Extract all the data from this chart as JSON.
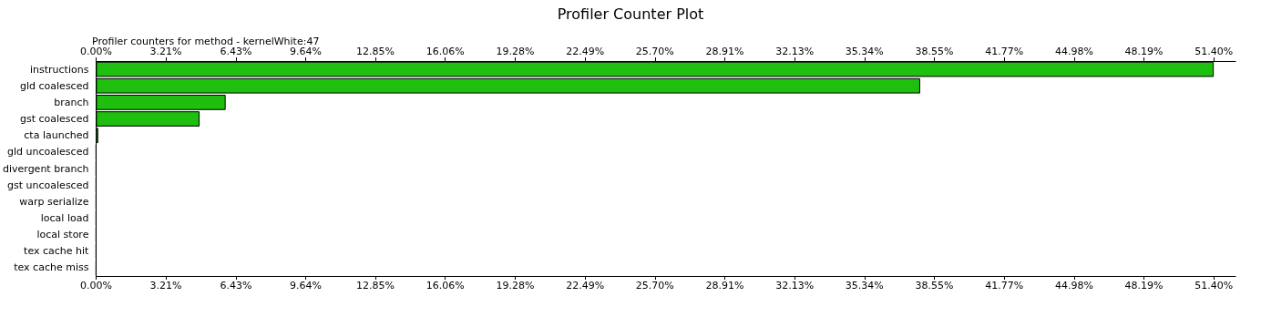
{
  "chart_data": {
    "type": "bar",
    "orientation": "horizontal",
    "title": "Profiler Counter Plot",
    "subtitle": "Profiler counters for method - kernelWhite:47",
    "categories": [
      "instructions",
      "gld coalesced",
      "branch",
      "gst coalesced",
      "cta launched",
      "gld uncoalesced",
      "divergent branch",
      "gst uncoalesced",
      "warp serialize",
      "local load",
      "local store",
      "tex cache hit",
      "tex cache miss"
    ],
    "values": [
      51.4,
      37.9,
      5.96,
      4.76,
      0.1,
      0,
      0,
      0,
      0,
      0,
      0,
      0,
      0
    ],
    "color": "#1fbf0f",
    "xlim": [
      0,
      52.4
    ],
    "xticks": [
      {
        "value": 0,
        "label": "0.00%"
      },
      {
        "value": 3.21,
        "label": "3.21%"
      },
      {
        "value": 6.43,
        "label": "6.43%"
      },
      {
        "value": 9.64,
        "label": "9.64%"
      },
      {
        "value": 12.85,
        "label": "12.85%"
      },
      {
        "value": 16.06,
        "label": "16.06%"
      },
      {
        "value": 19.28,
        "label": "19.28%"
      },
      {
        "value": 22.49,
        "label": "22.49%"
      },
      {
        "value": 25.7,
        "label": "25.70%"
      },
      {
        "value": 28.91,
        "label": "28.91%"
      },
      {
        "value": 32.13,
        "label": "32.13%"
      },
      {
        "value": 35.34,
        "label": "35.34%"
      },
      {
        "value": 38.55,
        "label": "38.55%"
      },
      {
        "value": 41.77,
        "label": "41.77%"
      },
      {
        "value": 44.98,
        "label": "44.98%"
      },
      {
        "value": 48.19,
        "label": "48.19%"
      },
      {
        "value": 51.4,
        "label": "51.40%"
      }
    ],
    "x2lim": [
      0,
      52.4
    ],
    "x2ticks": [
      {
        "value": 0,
        "label": "0.00%"
      },
      {
        "value": 3.21,
        "label": "3.21%"
      },
      {
        "value": 6.43,
        "label": "6.43%"
      },
      {
        "value": 9.64,
        "label": "9.64%"
      },
      {
        "value": 12.85,
        "label": "12.85%"
      },
      {
        "value": 16.06,
        "label": "16.06%"
      },
      {
        "value": 19.28,
        "label": "19.28%"
      },
      {
        "value": 22.49,
        "label": "22.49%"
      },
      {
        "value": 25.7,
        "label": "25.70%"
      },
      {
        "value": 28.91,
        "label": "28.91%"
      },
      {
        "value": 32.13,
        "label": "32.13%"
      },
      {
        "value": 35.34,
        "label": "35.34%"
      },
      {
        "value": 38.55,
        "label": "38.55%"
      },
      {
        "value": 41.77,
        "label": "41.77%"
      },
      {
        "value": 44.98,
        "label": "44.98%"
      },
      {
        "value": 48.19,
        "label": "48.19%"
      },
      {
        "value": 51.4,
        "label": "51.40%"
      }
    ],
    "grid": false
  }
}
